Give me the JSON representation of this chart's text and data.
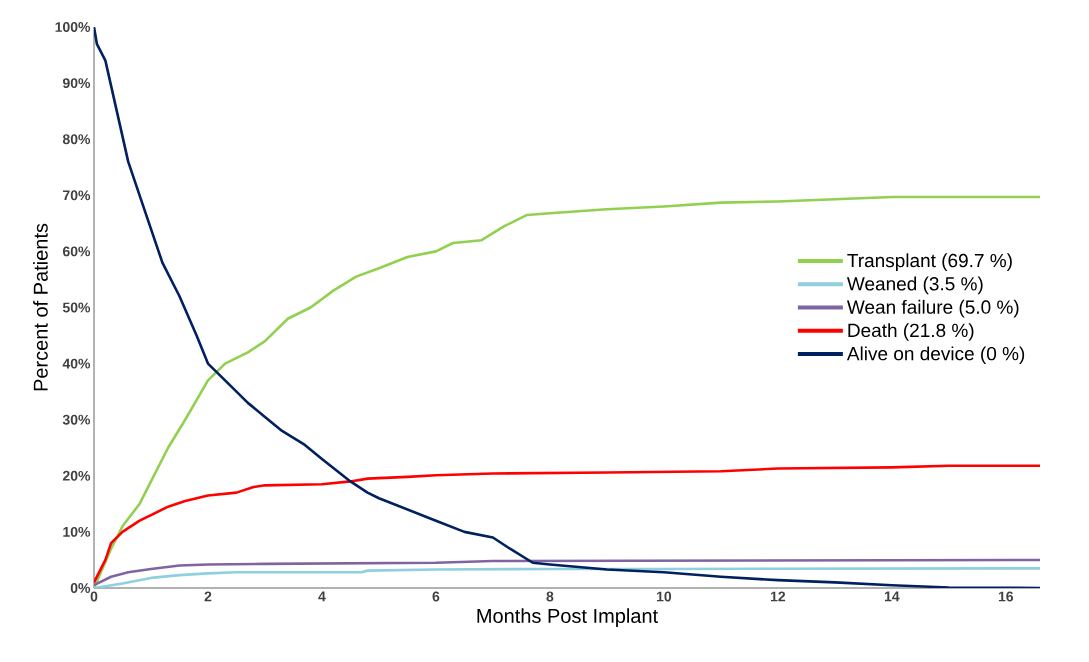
{
  "chart_data": {
    "type": "line",
    "xlabel": "Months Post Implant",
    "ylabel": "Percent of Patients",
    "xlim": [
      0,
      16.6
    ],
    "ylim": [
      0,
      100
    ],
    "xticks": [
      0,
      2,
      4,
      6,
      8,
      10,
      12,
      14,
      16
    ],
    "yticks": [
      {
        "value": 0,
        "label": "0%"
      },
      {
        "value": 10,
        "label": "10%"
      },
      {
        "value": 20,
        "label": "20%"
      },
      {
        "value": 30,
        "label": "30%"
      },
      {
        "value": 40,
        "label": "40%"
      },
      {
        "value": 50,
        "label": "50%"
      },
      {
        "value": 60,
        "label": "60%"
      },
      {
        "value": 70,
        "label": "70%"
      },
      {
        "value": 80,
        "label": "80%"
      },
      {
        "value": 90,
        "label": "90%"
      },
      {
        "value": 100,
        "label": "100%"
      }
    ],
    "legend": "right",
    "grid": false,
    "series": [
      {
        "name": "Transplant (69.7 %)",
        "color": "#92d050",
        "x": [
          0,
          0.3,
          0.5,
          0.8,
          1,
          1.3,
          1.6,
          2,
          2.3,
          2.7,
          3,
          3.4,
          3.8,
          4.2,
          4.6,
          5,
          5.5,
          6,
          6.3,
          6.8,
          7.2,
          7.6,
          8,
          9,
          10,
          11,
          12,
          13,
          14,
          16.6
        ],
        "values": [
          0,
          7,
          11,
          15,
          19,
          25,
          30,
          37,
          40,
          42,
          44,
          48,
          50,
          53,
          55.5,
          57,
          59,
          60,
          61.5,
          62,
          64.5,
          66.5,
          66.8,
          67.5,
          68,
          68.7,
          68.9,
          69.3,
          69.7,
          69.7
        ]
      },
      {
        "name": "Weaned (3.5 %)",
        "color": "#8fcfdf",
        "x": [
          0,
          0.5,
          1,
          1.5,
          2,
          2.5,
          4.7,
          4.8,
          6,
          8,
          10,
          16.6
        ],
        "values": [
          0,
          0.8,
          1.8,
          2.3,
          2.6,
          2.8,
          2.8,
          3.1,
          3.3,
          3.4,
          3.4,
          3.5
        ]
      },
      {
        "name": "Wean failure (5.0 %)",
        "color": "#8064a2",
        "x": [
          0,
          0.3,
          0.6,
          1,
          1.5,
          2,
          3,
          6,
          7,
          16.6
        ],
        "values": [
          0.5,
          2,
          2.8,
          3.4,
          4,
          4.2,
          4.3,
          4.5,
          4.8,
          5.0
        ]
      },
      {
        "name": "Death (21.8 %)",
        "color": "#ff0000",
        "x": [
          0,
          0.2,
          0.3,
          0.5,
          0.8,
          1,
          1.3,
          1.6,
          2,
          2.5,
          2.8,
          3,
          4,
          4.5,
          4.8,
          5.5,
          6,
          7,
          9,
          11,
          12,
          14,
          15,
          16.6
        ],
        "values": [
          1,
          5,
          8,
          10,
          12,
          13,
          14.5,
          15.5,
          16.5,
          17,
          18,
          18.3,
          18.5,
          19,
          19.5,
          19.8,
          20.1,
          20.4,
          20.6,
          20.8,
          21.3,
          21.5,
          21.8,
          21.8
        ]
      },
      {
        "name": "Alive on device (0 %)",
        "color": "#002060",
        "x": [
          0,
          0.05,
          0.2,
          0.4,
          0.6,
          0.8,
          1,
          1.2,
          1.5,
          1.8,
          2,
          2.3,
          2.7,
          3,
          3.3,
          3.7,
          4,
          4.5,
          4.8,
          5,
          5.5,
          6,
          6.5,
          7,
          7.3,
          7.7,
          8,
          9,
          10,
          11,
          12,
          13,
          14,
          15,
          16.6
        ],
        "values": [
          100,
          97,
          94,
          85,
          76,
          70,
          64,
          58,
          52,
          45,
          40,
          37,
          33,
          30.5,
          28,
          25.5,
          23,
          19,
          17,
          16,
          14,
          12,
          10,
          9,
          7,
          4.5,
          4.2,
          3.3,
          2.8,
          2,
          1.4,
          1,
          0.5,
          0.1,
          0
        ]
      }
    ]
  }
}
